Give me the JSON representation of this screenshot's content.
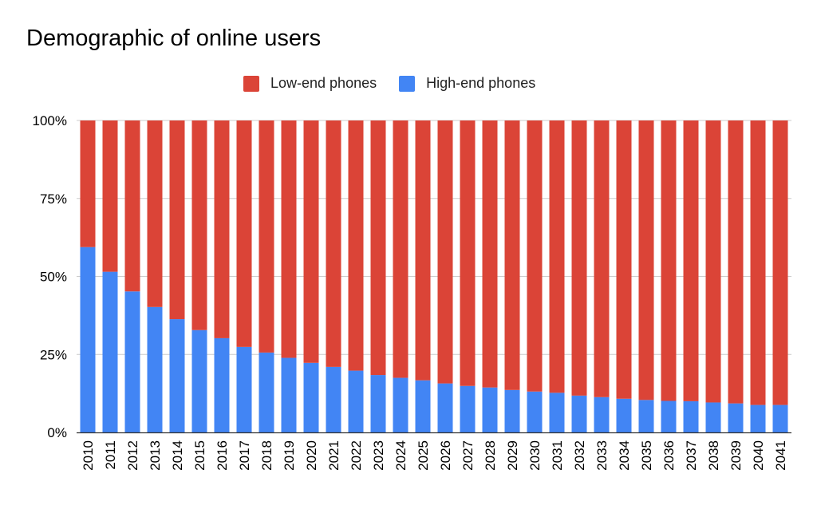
{
  "chart_data": {
    "type": "bar",
    "stacked": true,
    "normalized": true,
    "title": "Demographic of online users",
    "xlabel": "",
    "ylabel": "",
    "ylim": [
      0,
      100
    ],
    "yticks": [
      "0%",
      "25%",
      "50%",
      "75%",
      "100%"
    ],
    "grid": true,
    "legend_position": "top",
    "categories": [
      "2010",
      "2011",
      "2012",
      "2013",
      "2014",
      "2015",
      "2016",
      "2017",
      "2018",
      "2019",
      "2020",
      "2021",
      "2022",
      "2023",
      "2024",
      "2025",
      "2026",
      "2027",
      "2028",
      "2029",
      "2030",
      "2031",
      "2032",
      "2033",
      "2034",
      "2035",
      "2036",
      "2037",
      "2038",
      "2039",
      "2040",
      "2041"
    ],
    "series": [
      {
        "name": "High-end phones",
        "color": "#4285f4",
        "values": [
          59.4,
          51.5,
          45.2,
          40.2,
          36.3,
          32.8,
          30.2,
          27.4,
          25.6,
          23.9,
          22.3,
          21.0,
          19.8,
          18.4,
          17.5,
          16.7,
          15.7,
          14.9,
          14.4,
          13.6,
          13.1,
          12.7,
          11.8,
          11.3,
          10.8,
          10.4,
          10.1,
          10.0,
          9.6,
          9.3,
          8.8,
          8.8
        ]
      },
      {
        "name": "Low-end phones",
        "color": "#db4437",
        "values": [
          40.6,
          48.5,
          54.8,
          59.8,
          63.7,
          67.2,
          69.8,
          72.6,
          74.4,
          76.1,
          77.7,
          79.0,
          80.2,
          81.6,
          82.5,
          83.3,
          84.3,
          85.1,
          85.6,
          86.4,
          86.9,
          87.3,
          88.2,
          88.7,
          89.2,
          89.6,
          89.9,
          90.0,
          90.4,
          90.7,
          91.2,
          91.2
        ]
      }
    ],
    "legend_order": [
      "Low-end phones",
      "High-end phones"
    ]
  }
}
